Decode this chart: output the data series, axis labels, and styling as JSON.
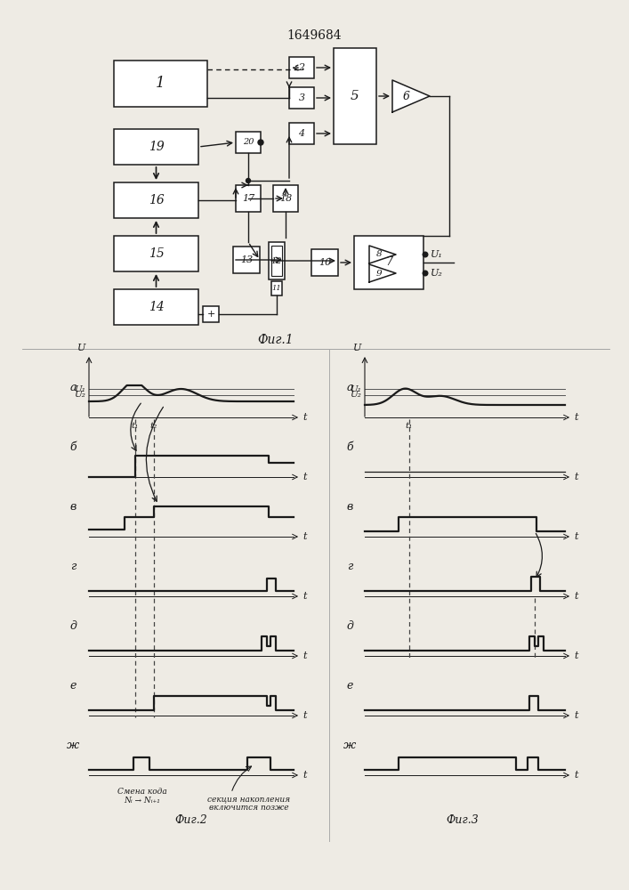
{
  "title": "1649684",
  "fig1_label": "Фиг.1",
  "fig2_label": "Фиг.2",
  "fig3_label": "Фиг.3",
  "bg_color": "#eeebe4",
  "line_color": "#1a1a1a",
  "fig2_row_labels": [
    "а",
    "б",
    "в",
    "г",
    "д",
    "е",
    "ж"
  ],
  "fig3_row_labels": [
    "а",
    "б",
    "в",
    "г",
    "д",
    "е",
    "ж"
  ]
}
